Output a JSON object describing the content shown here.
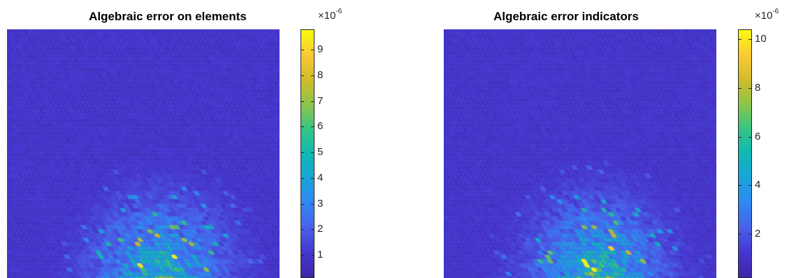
{
  "chart_data": [
    {
      "type": "heatmap",
      "title": "Algebraic error on elements",
      "colorbar": {
        "multiplier": "×10",
        "exponent": "-6",
        "ticks": [
          1,
          2,
          3,
          4,
          5,
          6,
          7,
          8,
          9
        ],
        "range": [
          0.1,
          9.8
        ],
        "colormap": "parula"
      },
      "hotspot": "bottom-center",
      "peak_value": 9.8
    },
    {
      "type": "heatmap",
      "title": "Algebraic error indicators",
      "colorbar": {
        "multiplier": "×10",
        "exponent": "-6",
        "ticks": [
          2,
          4,
          6,
          8,
          10
        ],
        "range": [
          0.2,
          10.4
        ],
        "colormap": "parula"
      },
      "hotspot": "bottom-center",
      "peak_value": 10.4
    }
  ]
}
